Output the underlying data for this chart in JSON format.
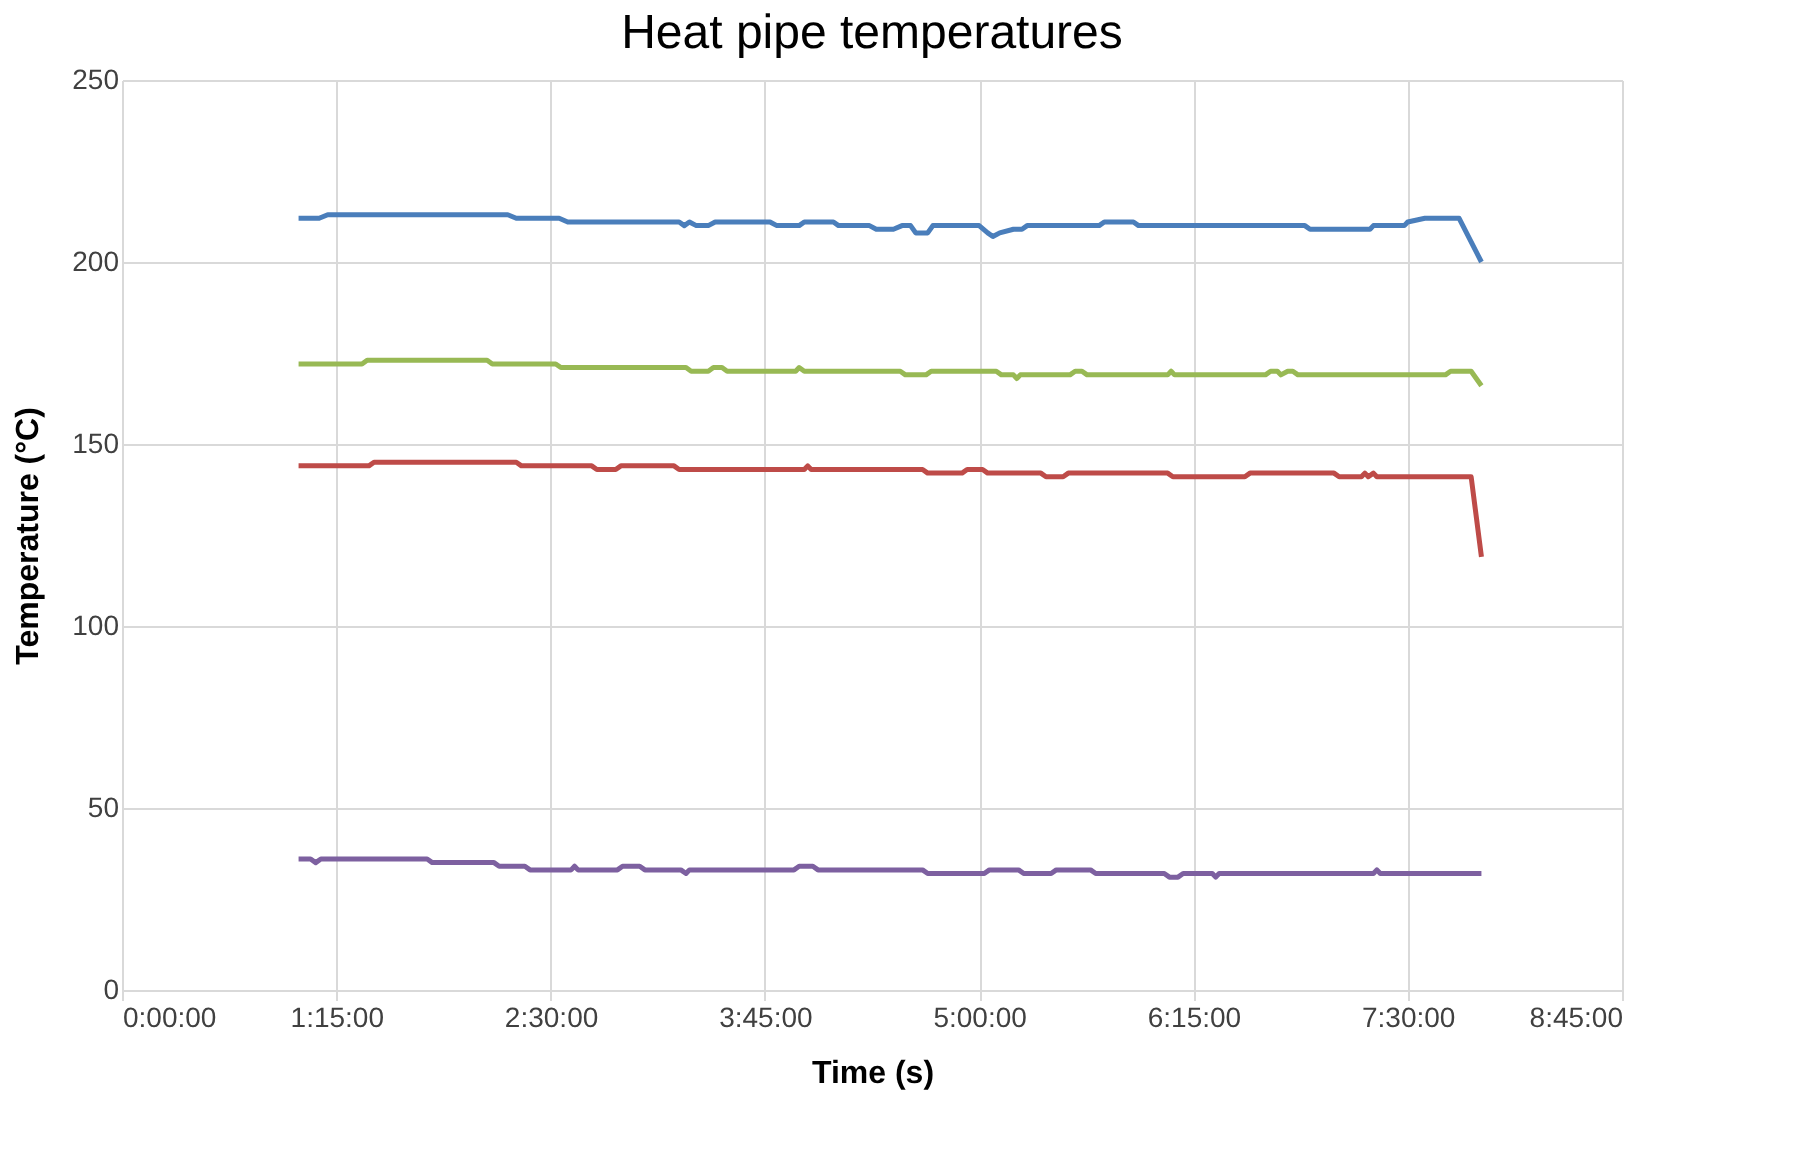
{
  "chart_data": {
    "type": "line",
    "title": "Heat pipe temperatures",
    "xlabel": "Time (s)",
    "ylabel": "Temperature (°C)",
    "xlim": [
      0,
      8.75
    ],
    "xticks": [
      {
        "value": 0,
        "label": "0:00:00"
      },
      {
        "value": 1.25,
        "label": "1:15:00"
      },
      {
        "value": 2.5,
        "label": "2:30:00"
      },
      {
        "value": 3.75,
        "label": "3:45:00"
      },
      {
        "value": 5,
        "label": "5:00:00"
      },
      {
        "value": 6.25,
        "label": "6:15:00"
      },
      {
        "value": 7.5,
        "label": "7:30:00"
      },
      {
        "value": 8.75,
        "label": "8:45:00"
      }
    ],
    "ylim": [
      0,
      250
    ],
    "yticks": [
      0,
      50,
      100,
      150,
      200,
      250
    ],
    "grid": true,
    "legend": false,
    "marker": "none",
    "line_style": "solid",
    "series": [
      {
        "color": "#4a7ebb",
        "x": [
          1.03,
          1.15,
          1.2,
          2.25,
          2.3,
          2.55,
          2.6,
          3.25,
          3.28,
          3.31,
          3.35,
          3.42,
          3.46,
          3.78,
          3.82,
          3.95,
          3.98,
          4.15,
          4.18,
          4.36,
          4.4,
          4.5,
          4.55,
          4.6,
          4.63,
          4.7,
          4.73,
          5.0,
          5.05,
          5.08,
          5.12,
          5.2,
          5.25,
          5.28,
          5.7,
          5.73,
          5.9,
          5.93,
          6.9,
          6.93,
          7.28,
          7.3,
          7.48,
          7.5,
          7.6,
          7.8,
          7.93
        ],
        "values": [
          212,
          212,
          213,
          213,
          212,
          212,
          211,
          211,
          210,
          211,
          210,
          210,
          211,
          211,
          210,
          210,
          211,
          211,
          210,
          210,
          209,
          209,
          210,
          210,
          208,
          208,
          210,
          210,
          208,
          207,
          208,
          209,
          209,
          210,
          210,
          211,
          211,
          210,
          210,
          209,
          209,
          210,
          210,
          211,
          212,
          212,
          200
        ]
      },
      {
        "color": "#98b954",
        "x": [
          1.03,
          1.4,
          1.43,
          2.13,
          2.16,
          2.53,
          2.56,
          3.29,
          3.32,
          3.42,
          3.45,
          3.5,
          3.53,
          3.93,
          3.95,
          3.98,
          4.54,
          4.57,
          4.69,
          4.72,
          5.1,
          5.13,
          5.2,
          5.22,
          5.24,
          5.53,
          5.56,
          5.6,
          5.63,
          6.1,
          6.12,
          6.14,
          6.67,
          6.7,
          6.74,
          6.76,
          6.8,
          6.83,
          6.86,
          6.95,
          6.98,
          7.72,
          7.75,
          7.87,
          7.93
        ],
        "values": [
          172,
          172,
          173,
          173,
          172,
          172,
          171,
          171,
          170,
          170,
          171,
          171,
          170,
          170,
          171,
          170,
          170,
          169,
          169,
          170,
          170,
          169,
          169,
          168,
          169,
          169,
          170,
          170,
          169,
          169,
          170,
          169,
          169,
          170,
          170,
          169,
          170,
          170,
          169,
          169,
          169,
          169,
          170,
          170,
          166
        ]
      },
      {
        "color": "#be4b48",
        "x": [
          1.03,
          1.44,
          1.47,
          2.3,
          2.33,
          2.74,
          2.77,
          2.88,
          2.91,
          3.22,
          3.25,
          3.98,
          4.0,
          4.02,
          4.67,
          4.7,
          4.9,
          4.93,
          5.02,
          5.05,
          5.36,
          5.39,
          5.49,
          5.52,
          6.1,
          6.13,
          6.55,
          6.58,
          7.07,
          7.1,
          7.23,
          7.25,
          7.27,
          7.3,
          7.32,
          7.34,
          7.87,
          7.93
        ],
        "values": [
          144,
          144,
          145,
          145,
          144,
          144,
          143,
          143,
          144,
          144,
          143,
          143,
          144,
          143,
          143,
          142,
          142,
          143,
          143,
          142,
          142,
          141,
          141,
          142,
          142,
          141,
          141,
          142,
          142,
          141,
          141,
          142,
          141,
          142,
          141,
          141,
          141,
          119
        ]
      },
      {
        "color": "#7d60a0",
        "x": [
          1.03,
          1.1,
          1.13,
          1.16,
          1.78,
          1.81,
          2.17,
          2.2,
          2.35,
          2.38,
          2.62,
          2.64,
          2.66,
          2.89,
          2.92,
          3.02,
          3.05,
          3.26,
          3.29,
          3.31,
          3.92,
          3.95,
          4.03,
          4.06,
          4.67,
          4.7,
          5.03,
          5.06,
          5.23,
          5.26,
          5.42,
          5.45,
          5.65,
          5.68,
          6.08,
          6.11,
          6.16,
          6.19,
          6.36,
          6.38,
          6.4,
          7.3,
          7.32,
          7.34,
          7.93
        ],
        "values": [
          36,
          36,
          35,
          36,
          36,
          35,
          35,
          34,
          34,
          33,
          33,
          34,
          33,
          33,
          34,
          34,
          33,
          33,
          32,
          33,
          33,
          34,
          34,
          33,
          33,
          32,
          32,
          33,
          33,
          32,
          32,
          33,
          33,
          32,
          32,
          31,
          31,
          32,
          32,
          31,
          32,
          32,
          33,
          32,
          32
        ]
      }
    ]
  }
}
